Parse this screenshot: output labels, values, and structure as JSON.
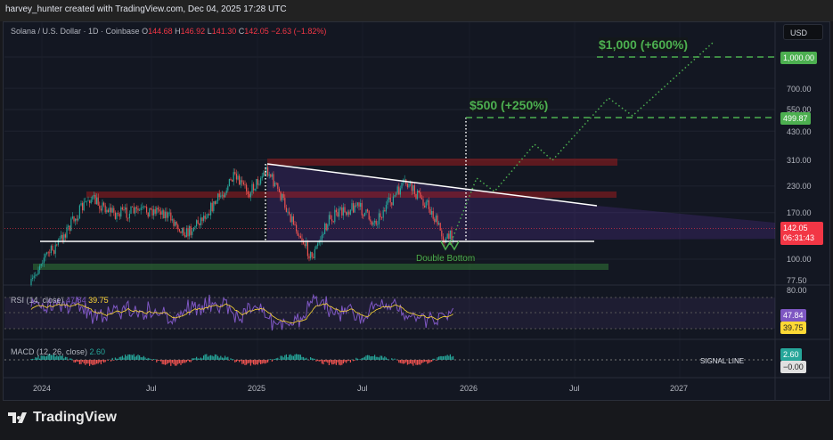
{
  "header": {
    "credit": "harvey_hunter created with TradingView.com, Dec 04, 2025 17:28 UTC"
  },
  "legend": {
    "symbol": "Solana / U.S. Dollar · 1D · Coinbase",
    "open_label": "O",
    "open": "144.68",
    "high_label": "H",
    "high": "146.92",
    "low_label": "L",
    "low": "141.30",
    "close_label": "C",
    "close": "142.05",
    "change": "−2.63 (−1.82%)"
  },
  "currency_button": "USD",
  "price_axis": {
    "scale": "log",
    "ticks": [
      "1,000.00",
      "700.00",
      "550.00",
      "430.00",
      "310.00",
      "230.00",
      "170.00",
      "100.00",
      "77.50"
    ],
    "tags": {
      "target_1000": "1,000.00",
      "target_500": "499.87",
      "last_price": "142.05",
      "countdown": "06:31:43"
    }
  },
  "annotations": {
    "target_500": "$500 (+250%)",
    "target_1000": "$1,000 (+600%)",
    "pattern": "Double Bottom"
  },
  "rsi": {
    "label": "RSI (14, close)",
    "value": "47.84",
    "ma_value": "39.75",
    "axis_top": "80.00",
    "tag_rsi": "47.84",
    "tag_ma": "39.75"
  },
  "macd": {
    "label": "MACD (12, 26, close)",
    "value": "2.60",
    "signal_label": "SIGNAL LINE",
    "tag_macd": "2.60",
    "tag_signal": "−0.00"
  },
  "time_axis": [
    "2024",
    "Jul",
    "2025",
    "Jul",
    "2026",
    "Jul",
    "2027"
  ],
  "colors": {
    "up": "#26a69a",
    "down": "#ef5350",
    "target": "#4caf50",
    "rsi": "#7e57c2",
    "rsi_ma": "#fdd835",
    "last": "#f23645"
  },
  "brand": "TradingView"
}
